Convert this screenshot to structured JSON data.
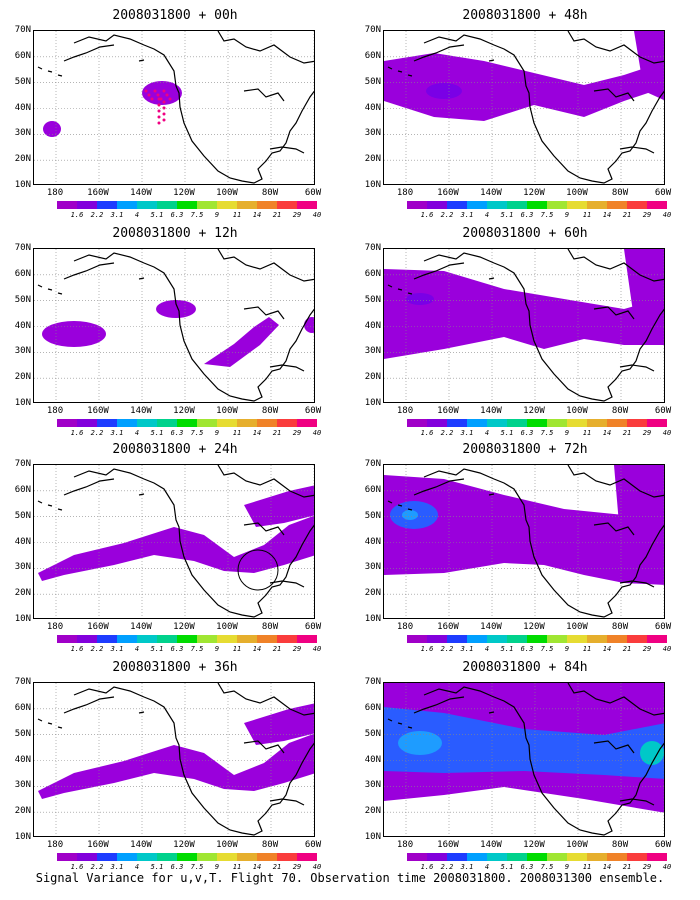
{
  "panels": [
    {
      "title": "2008031800 + 00h",
      "level": 0
    },
    {
      "title": "2008031800 + 48h",
      "level": 3
    },
    {
      "title": "2008031800 + 12h",
      "level": 1
    },
    {
      "title": "2008031800 + 60h",
      "level": 4
    },
    {
      "title": "2008031800 + 24h",
      "level": 2
    },
    {
      "title": "2008031800 + 72h",
      "level": 5
    },
    {
      "title": "2008031800 + 36h",
      "level": 2
    },
    {
      "title": "2008031800 + 84h",
      "level": 6
    }
  ],
  "lat_labels": [
    "70N",
    "60N",
    "50N",
    "40N",
    "30N",
    "20N",
    "10N"
  ],
  "lon_labels": [
    "180",
    "160W",
    "140W",
    "120W",
    "100W",
    "80W",
    "60W"
  ],
  "colorbar": {
    "colors": [
      "#a000c8",
      "#8200dc",
      "#1e3cff",
      "#00a0ff",
      "#00c8c8",
      "#00d28c",
      "#00dc00",
      "#a0e632",
      "#e6dc32",
      "#e6af2d",
      "#f08228",
      "#fa3c3c",
      "#f00082"
    ],
    "labels": [
      "1.6",
      "2.2",
      "3.1",
      "4",
      "5.1",
      "6.3",
      "7.5",
      "9",
      "11",
      "14",
      "21",
      "29",
      "40"
    ]
  },
  "footer": "Signal Variance for u,v,T. Flight 70. Observation time 2008031800. 2008031300 ensemble."
}
